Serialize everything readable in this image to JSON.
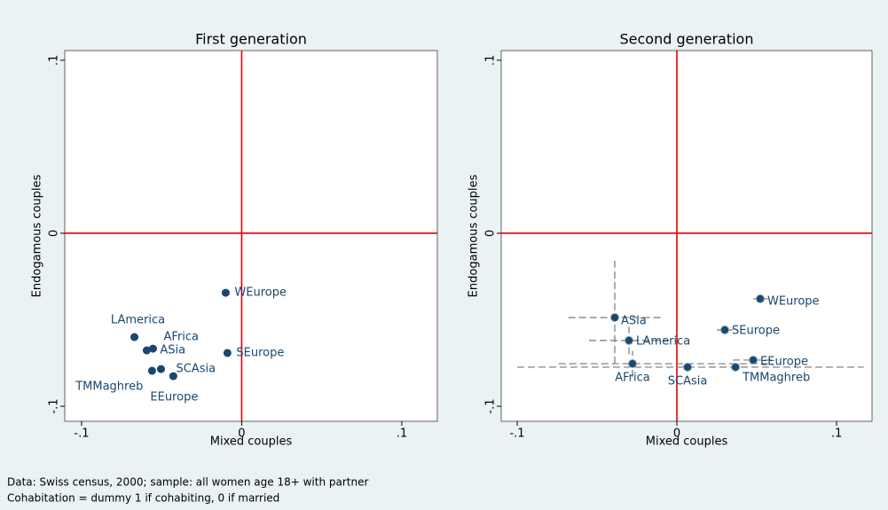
{
  "chart_data": [
    {
      "type": "scatter",
      "title": "First generation",
      "xlabel": "Mixed couples",
      "ylabel": "Endogamous couples",
      "labels": [
        "WEurope",
        "LAmerica",
        "AFrica",
        "ASia",
        "SEurope",
        "SCAsia",
        "TMMaghreb",
        "EEurope"
      ],
      "x": [
        -0.01,
        -0.067,
        -0.0554,
        -0.0593,
        -0.0089,
        -0.0504,
        -0.056,
        -0.0427
      ],
      "values": [
        -0.0344,
        -0.06,
        -0.0667,
        -0.0677,
        -0.0692,
        -0.0785,
        -0.0795,
        -0.0826
      ],
      "color": "#1a476f",
      "xlim": [
        -0.1105,
        0.1222
      ],
      "ylim": [
        -0.1087,
        0.1056
      ],
      "xticks": [
        {
          "value": -0.1,
          "label": "-.1"
        },
        0,
        {
          "value": 0.1,
          "label": ".1"
        }
      ],
      "yticks": [
        {
          "value": -0.1,
          "label": "-.1"
        },
        0,
        {
          "value": 0.1,
          "label": ".1"
        }
      ],
      "xline": 0,
      "yline": 0,
      "refline_color": "#e00000"
    },
    {
      "type": "scatter",
      "title": "Second generation",
      "xlabel": "Mixed couples",
      "ylabel": "Endogamous couples",
      "labels": [
        "WEurope",
        "SEurope",
        "ASia",
        "LAmerica",
        "EEurope",
        "AFrica",
        "SCAsia",
        "TMMaghreb"
      ],
      "x": [
        0.0522,
        0.03,
        -0.0389,
        -0.03,
        0.0478,
        -0.0278,
        0.0067,
        0.0367
      ],
      "values": [
        -0.0379,
        -0.0559,
        -0.0487,
        -0.062,
        -0.0733,
        -0.0754,
        -0.0774,
        -0.0774
      ],
      "x_ci": [
        [
          0.048,
          0.057
        ],
        [
          0.025,
          0.035
        ],
        [
          -0.068,
          -0.01
        ],
        [
          -0.055,
          -0.005
        ],
        [
          0.035,
          0.06
        ],
        [
          -0.074,
          0.06
        ],
        [
          -0.1,
          0.117
        ],
        [
          0.02,
          0.05
        ]
      ],
      "y_ci": [
        null,
        null,
        [
          -0.0754,
          -0.0154
        ],
        [
          -0.07,
          -0.054
        ],
        null,
        [
          -0.083,
          -0.068
        ],
        null,
        null
      ],
      "color": "#1a476f",
      "xlim": [
        -0.11,
        0.1222
      ],
      "ylim": [
        -0.1087,
        0.1056
      ],
      "xticks": [
        {
          "value": -0.1,
          "label": "-.1"
        },
        0,
        {
          "value": 0.1,
          "label": ".1"
        }
      ],
      "yticks": [
        {
          "value": -0.1,
          "label": "-.1"
        },
        0,
        {
          "value": 0.1,
          "label": ".1"
        }
      ],
      "xline": 0,
      "yline": 0,
      "refline_color": "#e00000"
    }
  ],
  "notes": [
    "Data: Swiss census, 2000; sample: all women age 18+ with partner",
    "Cohabitation = dummy 1 if cohabiting, 0 if married"
  ]
}
